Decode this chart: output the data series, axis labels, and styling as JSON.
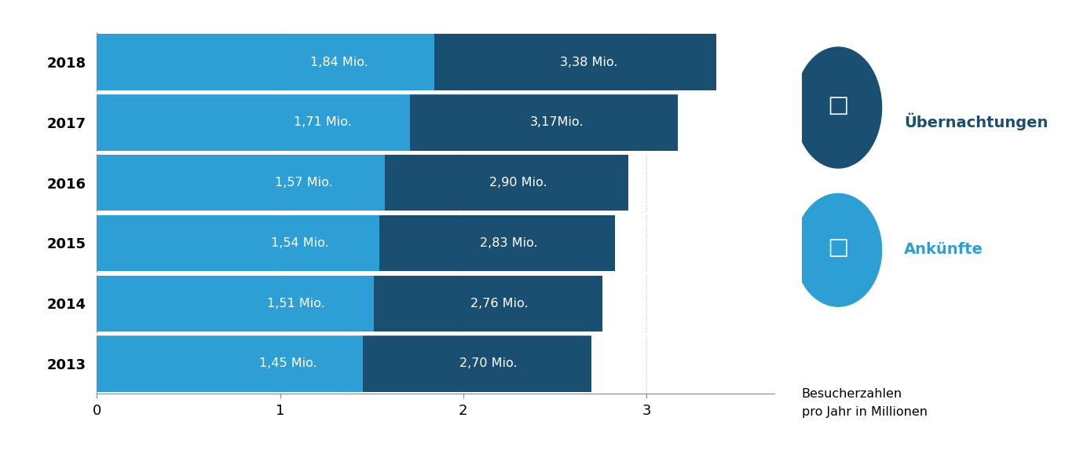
{
  "years": [
    "2018",
    "2017",
    "2016",
    "2015",
    "2014",
    "2013"
  ],
  "ankuenfte": [
    1.84,
    1.71,
    1.57,
    1.54,
    1.51,
    1.45
  ],
  "uebernachtungen": [
    3.38,
    3.17,
    2.9,
    2.83,
    2.76,
    2.7
  ],
  "ankuenfte_labels": [
    "1,84 Mio.",
    "1,71 Mio.",
    "1,57 Mio.",
    "1,54 Mio.",
    "1,51 Mio.",
    "1,45 Mio."
  ],
  "uebernachtungen_labels": [
    "3,38 Mio.",
    "3,17Mio.",
    "2,90 Mio.",
    "2,83 Mio.",
    "2,76 Mio.",
    "2,70 Mio."
  ],
  "color_light": "#2E9FD4",
  "color_dark": "#1B4F72",
  "background_color": "#FFFFFF",
  "bar_height": 0.93,
  "xlim": [
    0,
    3.7
  ],
  "xticks": [
    0,
    1,
    2,
    3
  ],
  "grid_color": "#BBBBBB",
  "label_fontsize": 11.5,
  "tick_fontsize": 13,
  "year_fontsize": 13,
  "legend_label1": "Übernachtungen",
  "legend_label2": "Ankünfte",
  "caption": "Besucherzahlen\npro Jahr in Millionen",
  "legend_color1": "#1B4F72",
  "legend_color2": "#2E9FD4"
}
